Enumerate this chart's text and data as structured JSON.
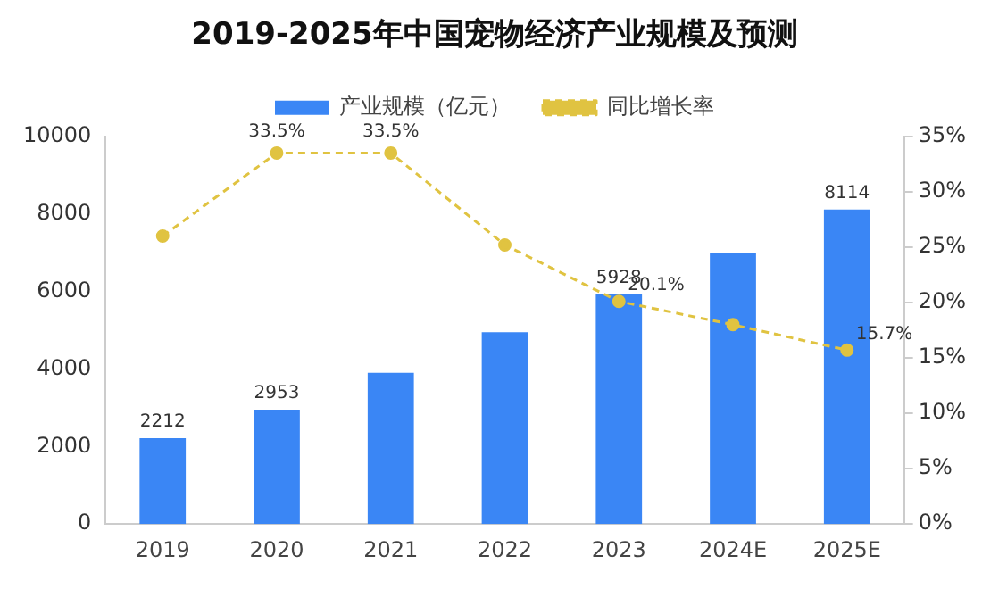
{
  "chart_data": {
    "type": "bar",
    "title": "2019-2025年中国宠物经济产业规模及预测",
    "categories": [
      "2019",
      "2020",
      "2021",
      "2022",
      "2023",
      "2024E",
      "2025E"
    ],
    "series": [
      {
        "name": "产业规模（亿元）",
        "color": "#3a86f5",
        "values": [
          2212,
          2953,
          3900,
          4950,
          5928,
          7000,
          8114
        ],
        "value_labels": [
          "2212",
          "2953",
          null,
          null,
          "5928",
          null,
          "8114"
        ]
      },
      {
        "name": "同比增长率",
        "type": "line",
        "axis": "y2",
        "color": "#e0c341",
        "line_style": "dashed",
        "marker": "circle",
        "values": [
          26,
          33.5,
          33.5,
          25.2,
          20.1,
          18,
          15.7
        ],
        "value_labels": [
          null,
          "33.5%",
          "33.5%",
          null,
          "20.1%",
          null,
          "15.7%"
        ]
      }
    ],
    "ylim": [
      0,
      10000
    ],
    "yticks": [
      0,
      2000,
      4000,
      6000,
      8000,
      10000
    ],
    "y2lim": [
      0,
      35
    ],
    "y2ticks": [
      {
        "value": 0,
        "label": "0%"
      },
      {
        "value": 5,
        "label": "5%"
      },
      {
        "value": 10,
        "label": "10%"
      },
      {
        "value": 15,
        "label": "15%"
      },
      {
        "value": 20,
        "label": "20%"
      },
      {
        "value": 25,
        "label": "25%"
      },
      {
        "value": 30,
        "label": "30%"
      },
      {
        "value": 35,
        "label": "35%"
      }
    ],
    "grid": false,
    "legend": "top"
  }
}
